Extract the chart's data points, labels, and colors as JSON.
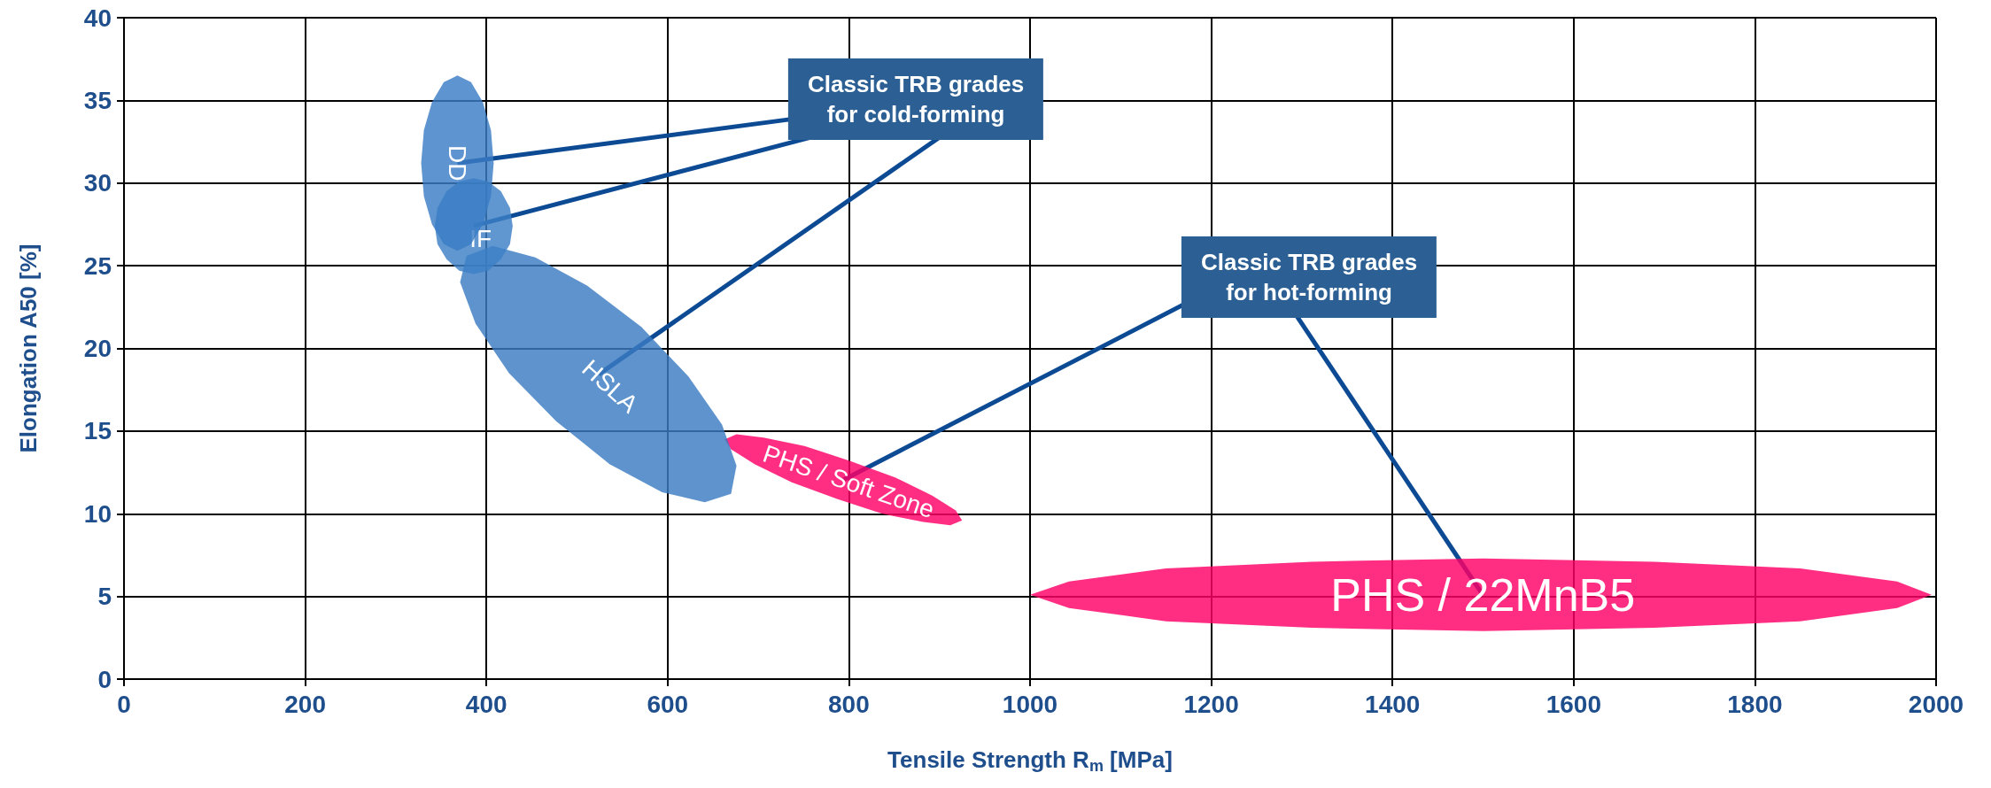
{
  "chart_data": {
    "type": "area",
    "xlabel": "Tensile Strength R$_{m}$ [MPa]",
    "ylabel": "Elongation A50 [%]",
    "xlim": [
      0,
      2000
    ],
    "xticks": [
      0,
      200,
      400,
      600,
      800,
      1000,
      1200,
      1400,
      1600,
      1800,
      2000
    ],
    "ylim": [
      0,
      40
    ],
    "yticks": [
      0,
      5,
      10,
      15,
      20,
      25,
      30,
      35,
      40
    ],
    "grid": true,
    "annotations": [
      "Classic TRB grades\nfor cold-forming",
      "Classic TRB grades\nfor hot-forming"
    ],
    "series": [
      {
        "name": "DD",
        "color": "#3b7dc4",
        "x": [
          408,
          405,
          396,
          383,
          368,
          353,
          340,
          331,
          328,
          331,
          340,
          353,
          368,
          383,
          396,
          405
        ],
        "values": [
          31.2,
          33.2,
          34.9,
          36.1,
          36.5,
          36.1,
          34.9,
          33.2,
          31.2,
          29.2,
          27.5,
          26.3,
          25.9,
          26.3,
          27.5,
          29.2
        ]
      },
      {
        "name": "IF",
        "color": "#3d80c6",
        "x": [
          429,
          426,
          416,
          402,
          386,
          370,
          356,
          346,
          343,
          346,
          356,
          370,
          386,
          402,
          416,
          426
        ],
        "values": [
          27.4,
          28.5,
          29.5,
          30.1,
          30.3,
          30.1,
          29.5,
          28.5,
          27.4,
          26.3,
          25.4,
          24.7,
          24.5,
          24.7,
          25.4,
          26.3
        ]
      },
      {
        "name": "HSLA",
        "color": "#3a7bc2",
        "x": [
          670,
          641,
          594,
          536,
          477,
          425,
          388,
          371,
          378,
          407,
          454,
          511,
          571,
          623,
          660,
          676
        ],
        "values": [
          11.2,
          10.7,
          11.3,
          13.0,
          15.6,
          18.5,
          21.5,
          24.0,
          25.6,
          26.2,
          25.5,
          23.8,
          21.3,
          18.3,
          15.4,
          12.9
        ]
      },
      {
        "name": "PHS / Soft Zone",
        "color": "#ff0066",
        "x": [
          925,
          912,
          882,
          837,
          787,
          737,
          696,
          670,
          663,
          676,
          706,
          751,
          801,
          851,
          892,
          918
        ],
        "values": [
          9.6,
          9.3,
          9.5,
          10.0,
          10.9,
          11.9,
          13.0,
          13.9,
          14.5,
          14.8,
          14.6,
          14.1,
          13.2,
          12.2,
          11.1,
          10.2
        ]
      },
      {
        "name": "PHS / 22MnB5",
        "color": "#ff0066",
        "x": [
          1995,
          1957,
          1850,
          1689,
          1500,
          1311,
          1150,
          1043,
          1000,
          1043,
          1150,
          1311,
          1500,
          1689,
          1850,
          1957
        ],
        "values": [
          5.1,
          5.9,
          6.7,
          7.1,
          7.3,
          7.1,
          6.7,
          5.9,
          5.1,
          4.3,
          3.5,
          3.1,
          2.9,
          3.1,
          3.5,
          4.3
        ]
      }
    ]
  }
}
